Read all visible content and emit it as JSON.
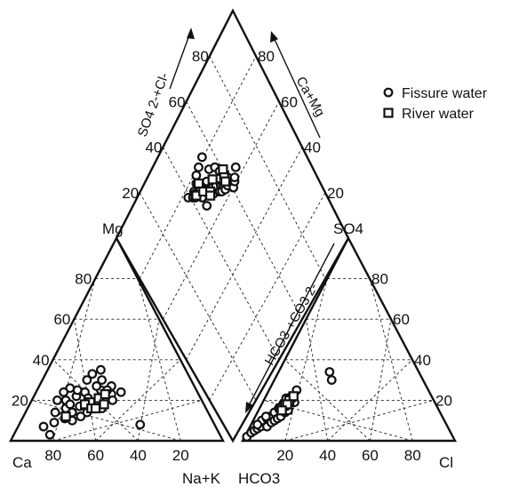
{
  "chart_data": {
    "type": "scatter",
    "subtype": "piper-diagram",
    "grid": true,
    "legend_position": "top-right",
    "legend": [
      {
        "name": "Fissure water",
        "marker": "circle"
      },
      {
        "name": "River water",
        "marker": "square"
      }
    ],
    "corner_labels": {
      "left_cation_ca": "Ca",
      "left_cation_mg": "Mg",
      "left_bottom_axis": "Na+K",
      "right_bottom_axis": "HCO3",
      "right_anion_cl": "Cl",
      "right_anion_so4": "SO4"
    },
    "axis_labels": {
      "diamond_left": "SO4 2-+Cl-",
      "diamond_right": "Ca+Mg",
      "anion_left": "HCO3-+CO3 2-"
    },
    "tick_labels": {
      "cation_mg": [
        "20",
        "40",
        "60",
        "80"
      ],
      "cation_na": [
        "80",
        "60",
        "40",
        "20"
      ],
      "anion_so4": [
        "20",
        "40",
        "60",
        "80"
      ],
      "anion_cl": [
        "20",
        "40",
        "60",
        "80"
      ],
      "diamond_so4cl": [
        "20",
        "40",
        "60",
        "80"
      ],
      "diamond_camg": [
        "20",
        "40",
        "60",
        "80"
      ]
    },
    "series": [
      {
        "name": "Fissure water",
        "marker": "circle",
        "cation": [
          [
            17,
            3
          ],
          [
            12,
            7
          ],
          [
            16,
            9
          ],
          [
            20,
            11
          ],
          [
            14,
            14
          ],
          [
            18,
            16
          ],
          [
            22,
            14
          ],
          [
            24,
            17
          ],
          [
            16,
            20
          ],
          [
            20,
            22
          ],
          [
            23,
            24
          ],
          [
            26,
            21
          ],
          [
            19,
            25
          ],
          [
            30,
            25
          ],
          [
            28,
            30
          ],
          [
            22,
            33
          ],
          [
            25,
            35
          ],
          [
            21,
            30
          ],
          [
            27,
            27
          ],
          [
            32,
            20
          ],
          [
            35,
            16
          ],
          [
            36,
            23
          ],
          [
            34,
            27
          ],
          [
            57,
            8
          ],
          [
            15,
            26
          ],
          [
            19,
            18
          ],
          [
            29,
            14
          ],
          [
            31,
            18
          ],
          [
            33,
            25
          ],
          [
            38,
            20
          ],
          [
            40,
            24
          ],
          [
            24,
            10
          ],
          [
            27,
            12
          ],
          [
            12,
            20
          ],
          [
            13,
            24
          ]
        ],
        "anion": [
          [
            1,
            2
          ],
          [
            2,
            4
          ],
          [
            3,
            5
          ],
          [
            4,
            6
          ],
          [
            5,
            7
          ],
          [
            6,
            9
          ],
          [
            4,
            10
          ],
          [
            6,
            11
          ],
          [
            7,
            12
          ],
          [
            8,
            14
          ],
          [
            9,
            16
          ],
          [
            10,
            18
          ],
          [
            11,
            19
          ],
          [
            10,
            21
          ],
          [
            13,
            25
          ],
          [
            8,
            7
          ],
          [
            9,
            9
          ],
          [
            10,
            10
          ],
          [
            11,
            11
          ],
          [
            12,
            12
          ],
          [
            13,
            14
          ],
          [
            14,
            15
          ],
          [
            12,
            17
          ],
          [
            14,
            19
          ],
          [
            15,
            19
          ],
          [
            13,
            21
          ],
          [
            12,
            22
          ],
          [
            27,
            30
          ],
          [
            24,
            34
          ],
          [
            5,
            12
          ],
          [
            3,
            8
          ]
        ],
        "diamond": [
          [
            79,
            41
          ],
          [
            77,
            43
          ],
          [
            76,
            44
          ],
          [
            78,
            45
          ],
          [
            76,
            47
          ],
          [
            73,
            47
          ],
          [
            74,
            50
          ],
          [
            72,
            52
          ],
          [
            71,
            51
          ],
          [
            69,
            53
          ],
          [
            71,
            54
          ],
          [
            70,
            56
          ],
          [
            67,
            56
          ],
          [
            68,
            58
          ],
          [
            67,
            59
          ],
          [
            66,
            57
          ],
          [
            65,
            59
          ],
          [
            69,
            47
          ],
          [
            73,
            51
          ],
          [
            75,
            53
          ],
          [
            65,
            61
          ],
          [
            67,
            63
          ],
          [
            62,
            63
          ],
          [
            63,
            65
          ],
          [
            64,
            66
          ],
          [
            66,
            69
          ],
          [
            77,
            57
          ],
          [
            75,
            60
          ],
          [
            72,
            61
          ],
          [
            77,
            45
          ],
          [
            79,
            48
          ],
          [
            81,
            50
          ],
          [
            82,
            53
          ],
          [
            83,
            57
          ]
        ]
      },
      {
        "name": "River water",
        "marker": "square",
        "cation": [
          [
            28,
            19
          ],
          [
            31,
            21
          ],
          [
            26,
            18
          ],
          [
            33,
            23
          ],
          [
            30,
            16
          ],
          [
            32,
            16
          ],
          [
            35,
            18
          ],
          [
            20,
            12
          ]
        ],
        "anion": [
          [
            10,
            16
          ],
          [
            11,
            18
          ],
          [
            12,
            20
          ],
          [
            13,
            22
          ],
          [
            12,
            18
          ],
          [
            11,
            15
          ]
        ],
        "diamond": [
          [
            76,
            45
          ],
          [
            78,
            49
          ],
          [
            74,
            49
          ],
          [
            71,
            52
          ],
          [
            73,
            56
          ],
          [
            70,
            51
          ],
          [
            69,
            62
          ],
          [
            71,
            63
          ],
          [
            67,
            61
          ]
        ]
      }
    ]
  }
}
